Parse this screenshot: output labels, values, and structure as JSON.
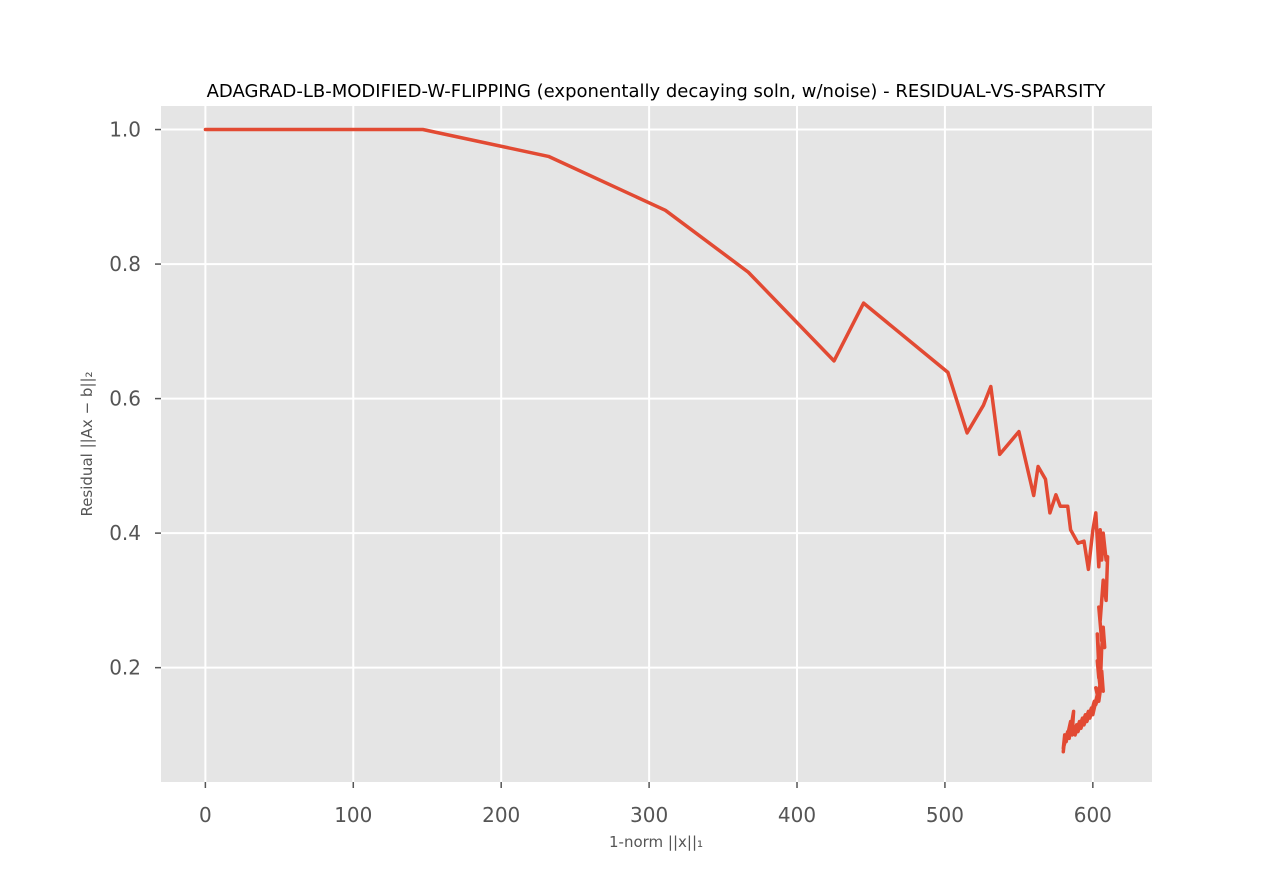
{
  "chart_data": {
    "type": "line",
    "title": "ADAGRAD-LB-MODIFIED-W-FLIPPING (exponentally decaying soln, w/noise) - RESIDUAL-VS-SPARSITY",
    "xlabel": "1-norm ||x||₁",
    "ylabel": "Residual ||Ax − b||₂",
    "xlim": [
      -30,
      640
    ],
    "ylim": [
      0.03,
      1.035
    ],
    "xticks": [
      0,
      100,
      200,
      300,
      400,
      500,
      600
    ],
    "xtick_labels": [
      "0",
      "100",
      "200",
      "300",
      "400",
      "500",
      "600"
    ],
    "yticks": [
      0.2,
      0.4,
      0.6,
      0.8,
      1.0
    ],
    "ytick_labels": [
      "0.2",
      "0.4",
      "0.6",
      "0.8",
      "1.0"
    ],
    "grid": true,
    "colors": {
      "line": "#E24A33",
      "background": "#E5E5E5",
      "grid": "#FFFFFF"
    },
    "series": [
      {
        "x": [
          0,
          147,
          232,
          311,
          367,
          425,
          445,
          502,
          515,
          526,
          531,
          537,
          550,
          560,
          563,
          568,
          571,
          575,
          578,
          583,
          585,
          590,
          594,
          597,
          600,
          602,
          604,
          605,
          606,
          607,
          609,
          610,
          609,
          607,
          605,
          604,
          606,
          608,
          607,
          605,
          603,
          604,
          606,
          605,
          603,
          604,
          606,
          607,
          605,
          603,
          602,
          604,
          605,
          602,
          603,
          600,
          601,
          598,
          599,
          596,
          597,
          594,
          595,
          592,
          593,
          590,
          591,
          588,
          589,
          586,
          587,
          584,
          585,
          582,
          583,
          580,
          581,
          580,
          581
        ],
        "y": [
          1.0,
          1.0,
          0.96,
          0.88,
          0.788,
          0.656,
          0.742,
          0.639,
          0.549,
          0.59,
          0.618,
          0.517,
          0.551,
          0.456,
          0.499,
          0.48,
          0.43,
          0.457,
          0.44,
          0.44,
          0.405,
          0.385,
          0.388,
          0.346,
          0.404,
          0.43,
          0.35,
          0.405,
          0.36,
          0.4,
          0.36,
          0.365,
          0.3,
          0.33,
          0.27,
          0.29,
          0.24,
          0.23,
          0.26,
          0.195,
          0.25,
          0.2,
          0.23,
          0.17,
          0.21,
          0.185,
          0.195,
          0.165,
          0.175,
          0.16,
          0.17,
          0.15,
          0.165,
          0.145,
          0.16,
          0.13,
          0.15,
          0.125,
          0.14,
          0.12,
          0.135,
          0.115,
          0.13,
          0.11,
          0.125,
          0.105,
          0.12,
          0.1,
          0.115,
          0.1,
          0.135,
          0.095,
          0.12,
          0.09,
          0.105,
          0.08,
          0.1,
          0.075,
          0.095
        ]
      }
    ]
  }
}
